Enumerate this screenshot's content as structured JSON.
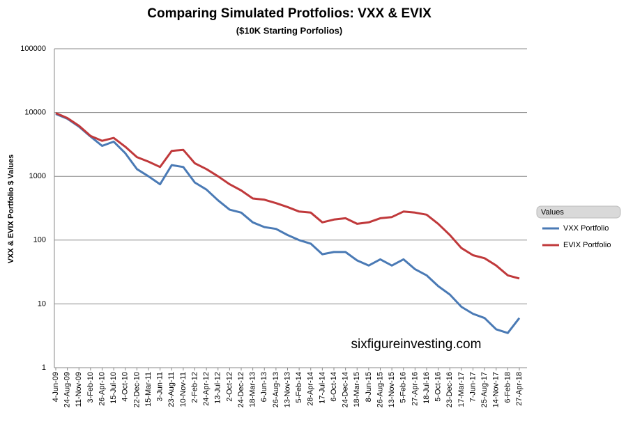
{
  "chart_data": {
    "type": "line",
    "title": "Comparing Simulated Protfolios: VXX & EVIX",
    "subtitle": "($10K Starting Porfolios)",
    "y_label": "VXX & EVIX Portfolio $ Values",
    "annotation": "sixfigureinvesting.com",
    "legend_title": "Values",
    "legend_position": "right",
    "log_scale": true,
    "grid": true,
    "categories": [
      "4-Jun-09",
      "24-Aug-09",
      "11-Nov-09",
      "3-Feb-10",
      "26-Apr-10",
      "15-Jul-10",
      "4-Oct-10",
      "22-Dec-10",
      "15-Mar-11",
      "3-Jun-11",
      "23-Aug-11",
      "10-Nov-11",
      "2-Feb-12",
      "24-Apr-12",
      "13-Jul-12",
      "2-Oct-12",
      "24-Dec-12",
      "18-Mar-13",
      "6-Jun-13",
      "26-Aug-13",
      "13-Nov-13",
      "5-Feb-14",
      "28-Apr-14",
      "17-Jul-14",
      "6-Oct-14",
      "24-Dec-14",
      "18-Mar-15",
      "8-Jun-15",
      "26-Aug-15",
      "13-Nov-15",
      "5-Feb-16",
      "27-Apr-16",
      "18-Jul-16",
      "5-Oct-16",
      "23-Dec-16",
      "17-Mar-17",
      "7-Jun-17",
      "25-Aug-17",
      "14-Nov-17",
      "6-Feb-18",
      "27-Apr-18"
    ],
    "series": [
      {
        "name": "VXX Portfolio",
        "color": "#4a7ab5",
        "values": [
          9500,
          8000,
          6000,
          4200,
          3000,
          3500,
          2300,
          1300,
          1000,
          750,
          1500,
          1400,
          800,
          620,
          420,
          300,
          270,
          190,
          160,
          150,
          120,
          100,
          88,
          60,
          65,
          65,
          48,
          40,
          50,
          40,
          50,
          35,
          28,
          19,
          14,
          9,
          7,
          6,
          4,
          3.5,
          6
        ]
      },
      {
        "name": "EVIX Portfolio",
        "color": "#c0393b",
        "values": [
          9800,
          8200,
          6200,
          4300,
          3600,
          4000,
          2900,
          2000,
          1700,
          1400,
          2500,
          2600,
          1600,
          1300,
          1000,
          750,
          600,
          450,
          430,
          380,
          330,
          280,
          270,
          190,
          210,
          220,
          180,
          190,
          220,
          230,
          280,
          270,
          250,
          180,
          120,
          75,
          58,
          52,
          40,
          28,
          25
        ]
      }
    ],
    "ylim": [
      1,
      100000
    ],
    "yticks": [
      1,
      10,
      100,
      1000,
      10000,
      100000
    ]
  }
}
